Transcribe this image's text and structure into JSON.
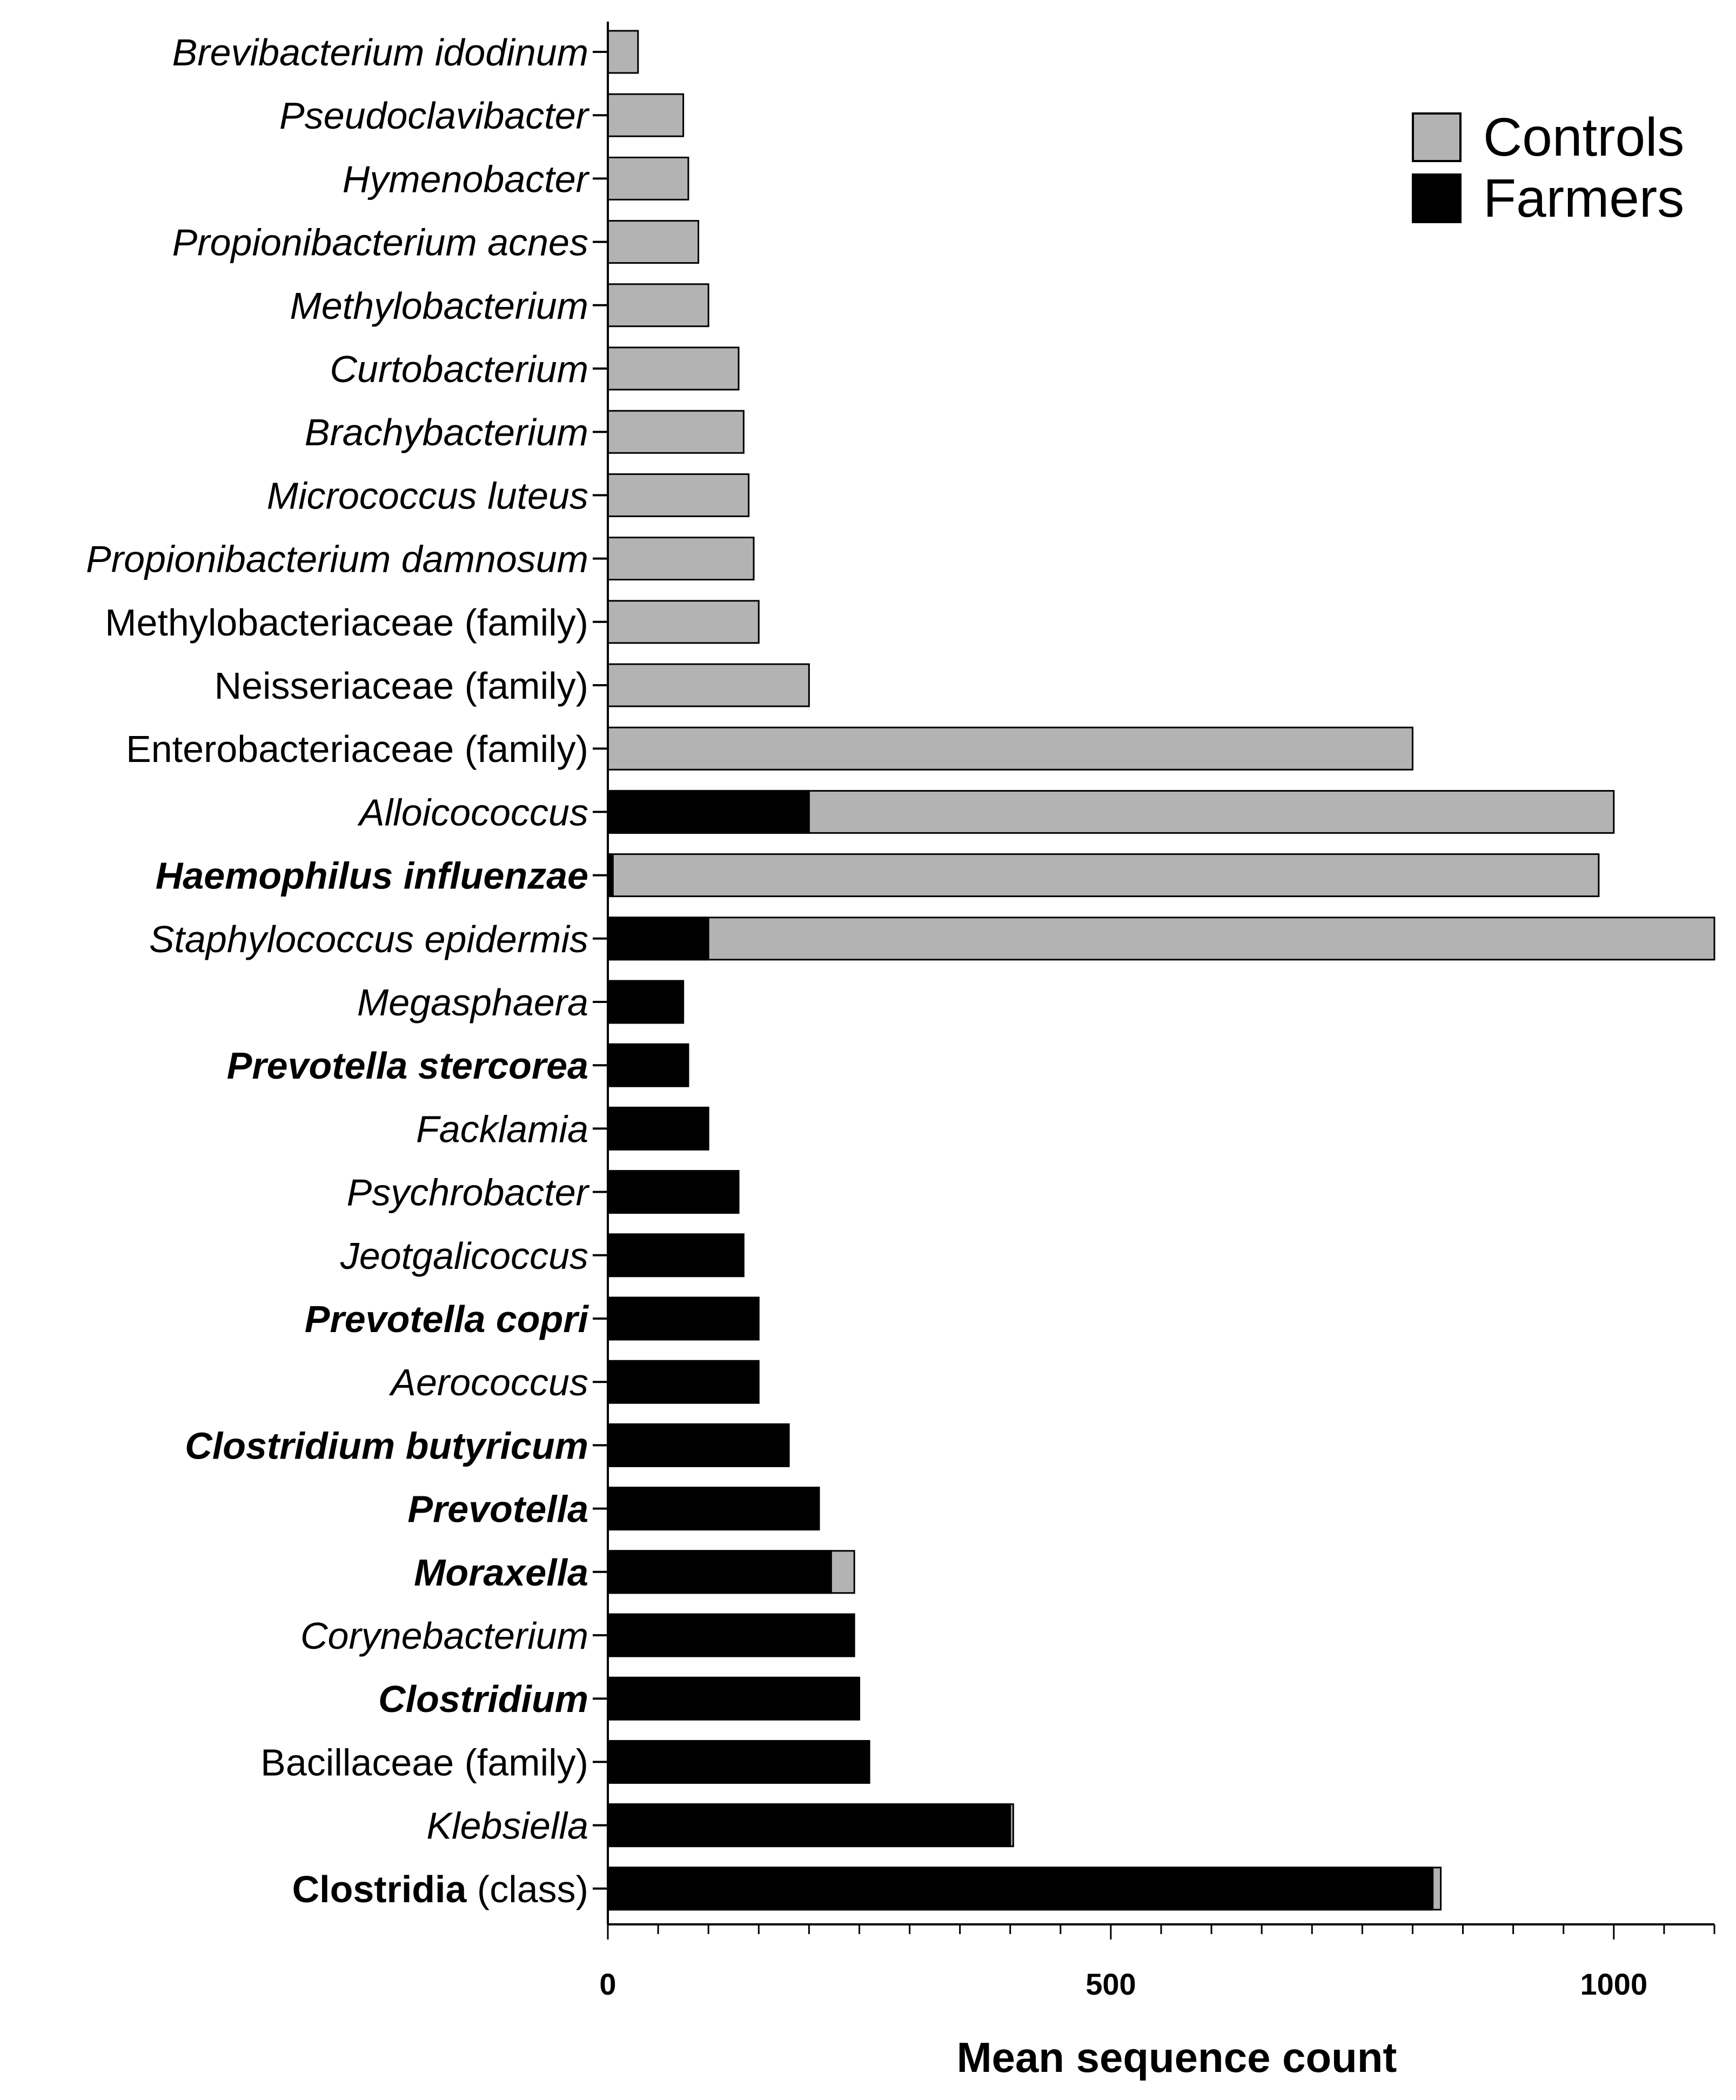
{
  "chart_data": {
    "type": "bar",
    "orientation": "horizontal",
    "stacked": true,
    "xlabel": "Mean sequence count",
    "ylabel": "",
    "xlim": [
      0,
      1100
    ],
    "x_ticks": [
      0,
      500,
      1000
    ],
    "x_minor_tick_step": 50,
    "grid": false,
    "legend_position": "top-right",
    "colors": {
      "Controls": "#b3b3b3",
      "Farmers": "#000000"
    },
    "series": [
      {
        "name": "Farmers",
        "color": "#000000"
      },
      {
        "name": "Controls",
        "color": "#b3b3b3"
      }
    ],
    "categories": [
      {
        "label": "Brevibacterium idodinum",
        "style": "italic",
        "farmers": 0,
        "controls": 30
      },
      {
        "label": "Pseudoclavibacter",
        "style": "italic",
        "farmers": 0,
        "controls": 75
      },
      {
        "label": "Hymenobacter",
        "style": "italic",
        "farmers": 0,
        "controls": 80
      },
      {
        "label": "Propionibacterium acnes",
        "style": "italic",
        "farmers": 0,
        "controls": 90
      },
      {
        "label": "Methylobacterium",
        "style": "italic",
        "farmers": 0,
        "controls": 100
      },
      {
        "label": "Curtobacterium",
        "style": "italic",
        "farmers": 0,
        "controls": 130
      },
      {
        "label": "Brachybacterium",
        "style": "italic",
        "farmers": 0,
        "controls": 135
      },
      {
        "label": "Micrococcus luteus",
        "style": "italic",
        "farmers": 0,
        "controls": 140
      },
      {
        "label": "Propionibacterium damnosum",
        "style": "italic",
        "farmers": 0,
        "controls": 145
      },
      {
        "label": "Methylobacteriaceae (family)",
        "style": "normal",
        "farmers": 0,
        "controls": 150
      },
      {
        "label": "Neisseriaceae (family)",
        "style": "normal",
        "farmers": 0,
        "controls": 200
      },
      {
        "label": "Enterobacteriaceae (family)",
        "style": "normal",
        "farmers": 0,
        "controls": 800
      },
      {
        "label": "Alloicococcus",
        "style": "italic",
        "farmers": 200,
        "controls": 800
      },
      {
        "label": "Haemophilus influenzae",
        "style": "bold-italic",
        "farmers": 5,
        "controls": 980
      },
      {
        "label": "Staphylococcus epidermis",
        "style": "italic",
        "farmers": 100,
        "controls": 1000
      },
      {
        "label": "Megasphaera",
        "style": "italic",
        "farmers": 75,
        "controls": 0
      },
      {
        "label": "Prevotella stercorea",
        "style": "bold-italic",
        "farmers": 80,
        "controls": 0
      },
      {
        "label": "Facklamia",
        "style": "italic",
        "farmers": 100,
        "controls": 0
      },
      {
        "label": "Psychrobacter",
        "style": "italic",
        "farmers": 130,
        "controls": 0
      },
      {
        "label": "Jeotgalicoccus",
        "style": "italic",
        "farmers": 135,
        "controls": 0
      },
      {
        "label": "Prevotella copri",
        "style": "bold-italic",
        "farmers": 150,
        "controls": 0
      },
      {
        "label": "Aerococcus",
        "style": "italic",
        "farmers": 150,
        "controls": 0
      },
      {
        "label": "Clostridium butyricum",
        "style": "bold-italic",
        "farmers": 180,
        "controls": 0
      },
      {
        "label": "Prevotella",
        "style": "bold-italic",
        "farmers": 210,
        "controls": 0
      },
      {
        "label": "Moraxella",
        "style": "bold-italic",
        "farmers": 222,
        "controls": 23
      },
      {
        "label": "Corynebacterium",
        "style": "italic",
        "farmers": 245,
        "controls": 0
      },
      {
        "label": "Clostridium",
        "style": "bold-italic",
        "farmers": 250,
        "controls": 0
      },
      {
        "label": "Bacillaceae (family)",
        "style": "normal",
        "farmers": 260,
        "controls": 0
      },
      {
        "label": "Klebsiella",
        "style": "italic",
        "farmers": 400,
        "controls": 3
      },
      {
        "label": "Clostridia (class)",
        "style": "bold-name-normal-suffix",
        "bold_part": "Clostridia",
        "normal_part": " (class)",
        "farmers": 820,
        "controls": 8
      }
    ]
  }
}
